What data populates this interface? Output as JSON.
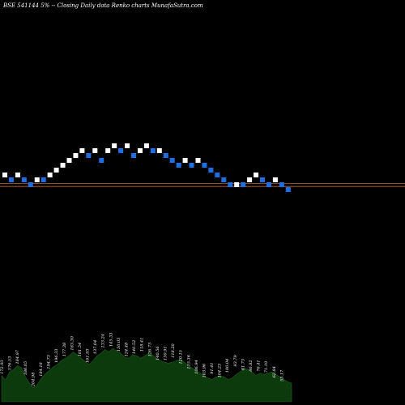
{
  "chart_data": {
    "type": "renko",
    "title": "BSE 541144  5% -- Closing Daily data  Renko  charts MunafaSutra.com",
    "reference_lines": [
      {
        "value": 175.4,
        "color": "#c0622a"
      },
      {
        "value": 171.8,
        "color": "#c0622a"
      }
    ],
    "bricks": [
      {
        "dir": "up",
        "value": 186
      },
      {
        "dir": "down",
        "value": 180
      },
      {
        "dir": "up",
        "value": 186
      },
      {
        "dir": "down",
        "value": 180
      },
      {
        "dir": "down",
        "value": 174
      },
      {
        "dir": "up",
        "value": 180
      },
      {
        "dir": "down",
        "value": 180
      },
      {
        "dir": "up",
        "value": 186
      },
      {
        "dir": "up",
        "value": 192
      },
      {
        "dir": "up",
        "value": 198
      },
      {
        "dir": "up",
        "value": 204
      },
      {
        "dir": "up",
        "value": 210
      },
      {
        "dir": "up",
        "value": 216
      },
      {
        "dir": "down",
        "value": 210
      },
      {
        "dir": "up",
        "value": 216
      },
      {
        "dir": "down",
        "value": 204
      },
      {
        "dir": "up",
        "value": 216
      },
      {
        "dir": "up",
        "value": 222
      },
      {
        "dir": "down",
        "value": 216
      },
      {
        "dir": "up",
        "value": 222
      },
      {
        "dir": "down",
        "value": 210
      },
      {
        "dir": "up",
        "value": 216
      },
      {
        "dir": "up",
        "value": 222
      },
      {
        "dir": "down",
        "value": 216
      },
      {
        "dir": "up",
        "value": 216
      },
      {
        "dir": "down",
        "value": 210
      },
      {
        "dir": "down",
        "value": 204
      },
      {
        "dir": "down",
        "value": 198
      },
      {
        "dir": "up",
        "value": 204
      },
      {
        "dir": "down",
        "value": 198
      },
      {
        "dir": "up",
        "value": 204
      },
      {
        "dir": "down",
        "value": 198
      },
      {
        "dir": "down",
        "value": 192
      },
      {
        "dir": "down",
        "value": 186
      },
      {
        "dir": "down",
        "value": 180
      },
      {
        "dir": "down",
        "value": 174
      },
      {
        "dir": "up",
        "value": 174
      },
      {
        "dir": "down",
        "value": 174
      },
      {
        "dir": "up",
        "value": 180
      },
      {
        "dir": "up",
        "value": 186
      },
      {
        "dir": "down",
        "value": 180
      },
      {
        "dir": "down",
        "value": 174
      },
      {
        "dir": "up",
        "value": 180
      },
      {
        "dir": "down",
        "value": 174
      },
      {
        "dir": "down",
        "value": 168
      }
    ],
    "volume": {
      "values": [
        42,
        35,
        48,
        52,
        58,
        55,
        40,
        30,
        22,
        28,
        38,
        45,
        50,
        56,
        60,
        66,
        70,
        74,
        80,
        76,
        70,
        65,
        60,
        66,
        74,
        78,
        84,
        80,
        86,
        82,
        78,
        72,
        70,
        76,
        74,
        70,
        74,
        78,
        75,
        70,
        66,
        64,
        62,
        64,
        66,
        68,
        64,
        58,
        54,
        50,
        46,
        42,
        38,
        36,
        40,
        42,
        40,
        36,
        38,
        44,
        48,
        54,
        52,
        48,
        42,
        46,
        44,
        46,
        48,
        44,
        40,
        36,
        32,
        30
      ],
      "labels": [
        "172.93",
        "176.53",
        "184.97",
        "186.05",
        "204.98",
        "184.18",
        "194.73",
        "196.33",
        "177.38",
        "183.30",
        "181.54",
        "161.93",
        "137.04",
        "133.24",
        "145.33",
        "150.05",
        "124.48",
        "140.52",
        "118.41",
        "126.73",
        "140.56",
        "130.91",
        "118.20",
        "120.15",
        "115.36",
        "106.94",
        "103.96",
        "91.41",
        "104.23",
        "100.04",
        "93.79",
        "81.73",
        "86.82",
        "76.41",
        "71.19",
        "62.84",
        "53.17"
      ]
    }
  }
}
